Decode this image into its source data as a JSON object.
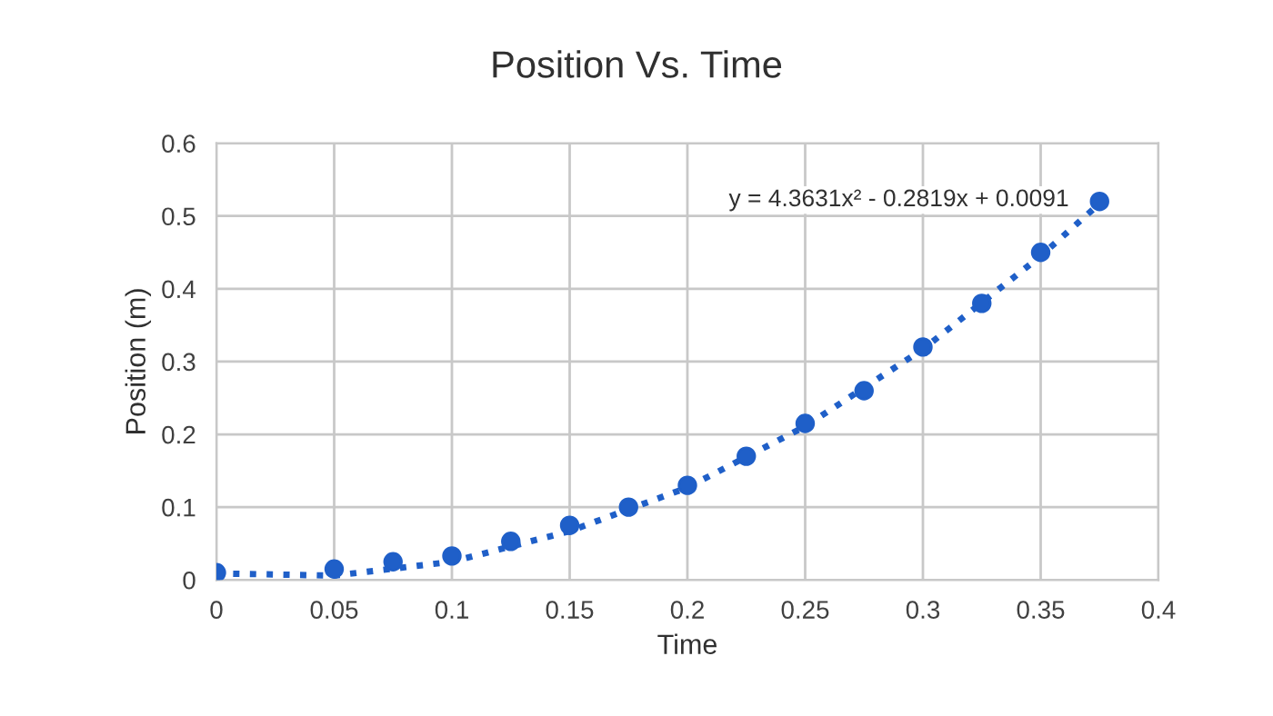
{
  "chart_data": {
    "type": "scatter",
    "title": "Position Vs. Time",
    "xlabel": "Time",
    "ylabel": "Position (m)",
    "annotations": [
      "y = 4.3631x² - 0.2819x + 0.0091"
    ],
    "series": [
      {
        "color": "#1f5fc8",
        "marker": "circle",
        "x": [
          0,
          0.05,
          0.075,
          0.1,
          0.125,
          0.15,
          0.175,
          0.2,
          0.225,
          0.25,
          0.275,
          0.3,
          0.325,
          0.35,
          0.375
        ],
        "values": [
          0.01,
          0.015,
          0.025,
          0.033,
          0.053,
          0.075,
          0.1,
          0.13,
          0.17,
          0.215,
          0.26,
          0.32,
          0.38,
          0.45,
          0.52
        ]
      },
      {
        "type": "line",
        "color": "#1f5fc8",
        "line_style": "dotted",
        "x": [
          0,
          0.05,
          0.1,
          0.15,
          0.2,
          0.25,
          0.3,
          0.35,
          0.375
        ],
        "values": [
          0.009,
          0.006,
          0.025,
          0.067,
          0.127,
          0.211,
          0.317,
          0.445,
          0.517
        ]
      }
    ],
    "xlim": [
      0,
      0.4
    ],
    "xticks": [
      0,
      0.05,
      0.1,
      0.15,
      0.2,
      0.25,
      0.3,
      0.35,
      0.4
    ],
    "ylim": [
      0,
      0.6
    ],
    "yticks": [
      0,
      0.1,
      0.2,
      0.3,
      0.4,
      0.5,
      0.6
    ],
    "grid": true,
    "legend": false
  }
}
